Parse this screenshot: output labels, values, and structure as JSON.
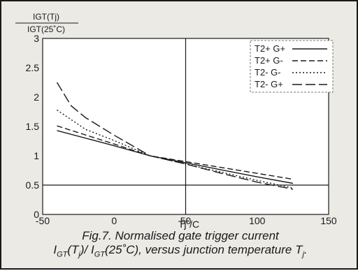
{
  "chart_data": {
    "type": "line",
    "ylabel_numerator": "IGT(Tj)",
    "ylabel_denominator": "IGT(25˚C)",
    "xlabel": "Tj˚/C",
    "xlim": [
      -50,
      150
    ],
    "ylim": [
      0,
      3
    ],
    "x_ticks": [
      "-50",
      "0",
      "50",
      "100",
      "150"
    ],
    "y_ticks": [
      "0",
      "0.5",
      "1",
      "1.5",
      "2",
      "2.5",
      "3"
    ],
    "grid": "x=50, y=0.5",
    "legend_position": "top-right",
    "series": [
      {
        "name": "T2+ G+",
        "dash": "solid",
        "x": [
          -40,
          0,
          25,
          50,
          75,
          100,
          125
        ],
        "values": [
          1.43,
          1.17,
          1.0,
          0.88,
          0.76,
          0.64,
          0.53
        ]
      },
      {
        "name": "T2+ G-",
        "dash": "dashed",
        "x": [
          -40,
          0,
          25,
          50,
          75,
          100,
          125
        ],
        "values": [
          1.51,
          1.2,
          1.0,
          0.9,
          0.8,
          0.7,
          0.6
        ]
      },
      {
        "name": "T2- G-",
        "dash": "dotted",
        "x": [
          -40,
          -20,
          0,
          25,
          50,
          75,
          100,
          125
        ],
        "values": [
          1.78,
          1.45,
          1.26,
          1.0,
          0.86,
          0.72,
          0.58,
          0.45
        ]
      },
      {
        "name": "T2- G+",
        "dash": "longdash",
        "x": [
          -40,
          -30,
          -20,
          0,
          25,
          50,
          75,
          100,
          125
        ],
        "values": [
          2.25,
          1.85,
          1.65,
          1.35,
          1.0,
          0.86,
          0.7,
          0.55,
          0.43
        ]
      }
    ]
  },
  "caption": {
    "line1": "Fig.7.   Normalised gate trigger current",
    "l2_a": "I",
    "l2_sub1": "GT",
    "l2_b": "(T",
    "l2_sub2": "j",
    "l2_c": ")/ I",
    "l2_sub3": "GT",
    "l2_d": "(25˚C), versus junction temperature T",
    "l2_sub4": "j",
    "l2_e": "."
  }
}
